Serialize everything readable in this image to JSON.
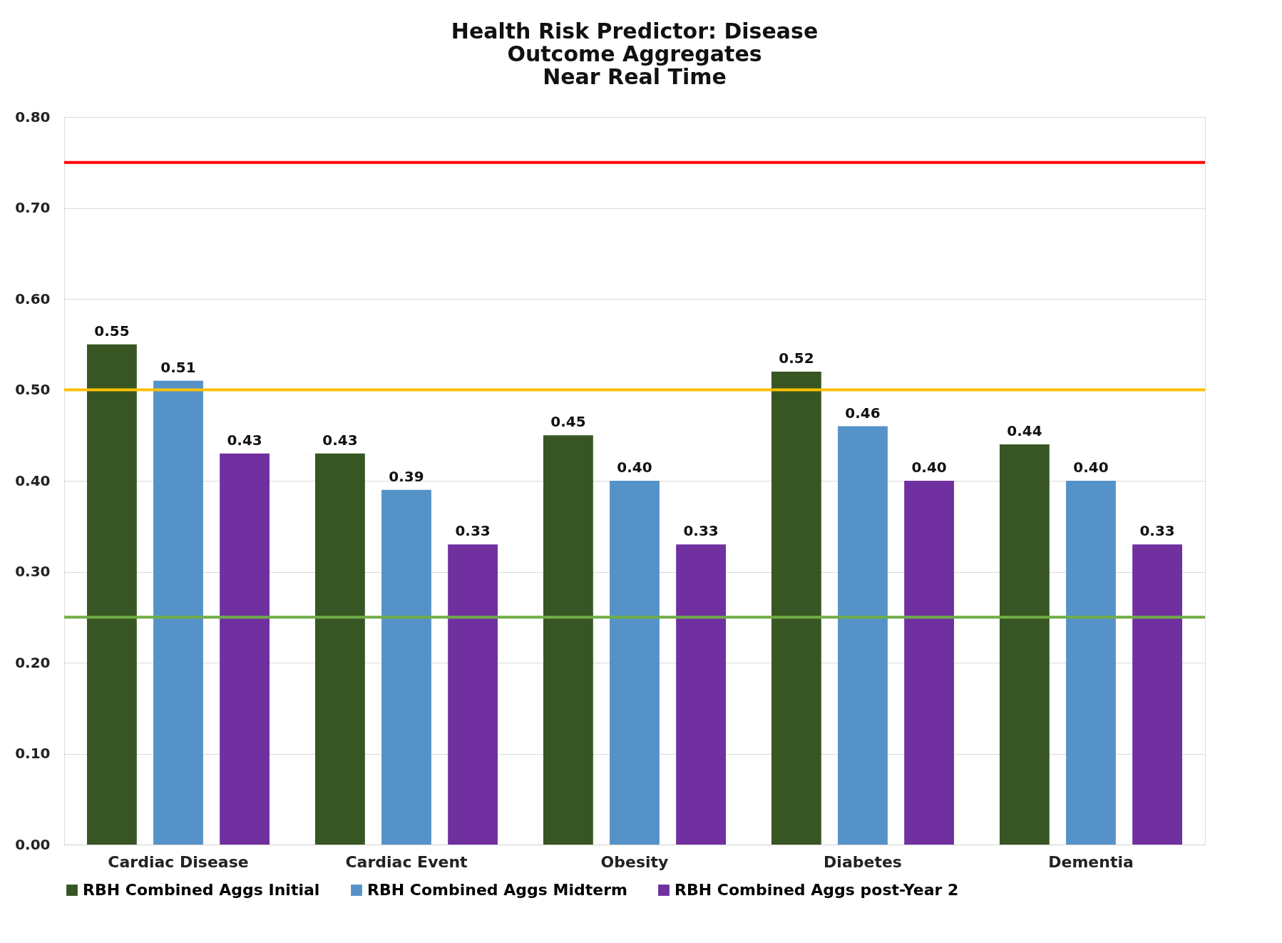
{
  "chart_data": {
    "type": "bar",
    "title": [
      "Health Risk Predictor: Disease",
      "Outcome Aggregates",
      "Near Real Time"
    ],
    "categories": [
      "Cardiac Disease",
      "Cardiac Event",
      "Obesity",
      "Diabetes",
      "Dementia"
    ],
    "series": [
      {
        "name": "RBH Combined Aggs Initial",
        "color": "#375623",
        "values": [
          0.55,
          0.43,
          0.45,
          0.52,
          0.44
        ],
        "value_labels": [
          "0.55",
          "0.43",
          "0.45",
          "0.52",
          "0.44"
        ]
      },
      {
        "name": "RBH Combined Aggs Midterm",
        "color": "#5592c8",
        "values": [
          0.51,
          0.39,
          0.4,
          0.46,
          0.4
        ],
        "value_labels": [
          "0.51",
          "0.39",
          "0.40",
          "0.46",
          "0.40"
        ]
      },
      {
        "name": "RBH Combined Aggs post-Year 2",
        "color": "#7030a0",
        "values": [
          0.43,
          0.33,
          0.33,
          0.4,
          0.33
        ],
        "value_labels": [
          "0.43",
          "0.33",
          "0.33",
          "0.40",
          "0.33"
        ]
      }
    ],
    "ylim": [
      0,
      0.8
    ],
    "yticks": [
      {
        "value": 0,
        "label": "0.00"
      },
      {
        "value": 0.1,
        "label": "0.10"
      },
      {
        "value": 0.2,
        "label": "0.20"
      },
      {
        "value": 0.3,
        "label": "0.30"
      },
      {
        "value": 0.4,
        "label": "0.40"
      },
      {
        "value": 0.5,
        "label": "0.50"
      },
      {
        "value": 0.6,
        "label": "0.60"
      },
      {
        "value": 0.7,
        "label": "0.70"
      },
      {
        "value": 0.8,
        "label": "0.80"
      }
    ],
    "ref_lines": [
      {
        "axis": "y",
        "value": 0.75,
        "color": "#ff0000"
      },
      {
        "axis": "y",
        "value": 0.5,
        "color": "#ffc000"
      },
      {
        "axis": "y",
        "value": 0.25,
        "color": "#70ad47"
      }
    ],
    "grid": "y",
    "legend": "bottom"
  }
}
